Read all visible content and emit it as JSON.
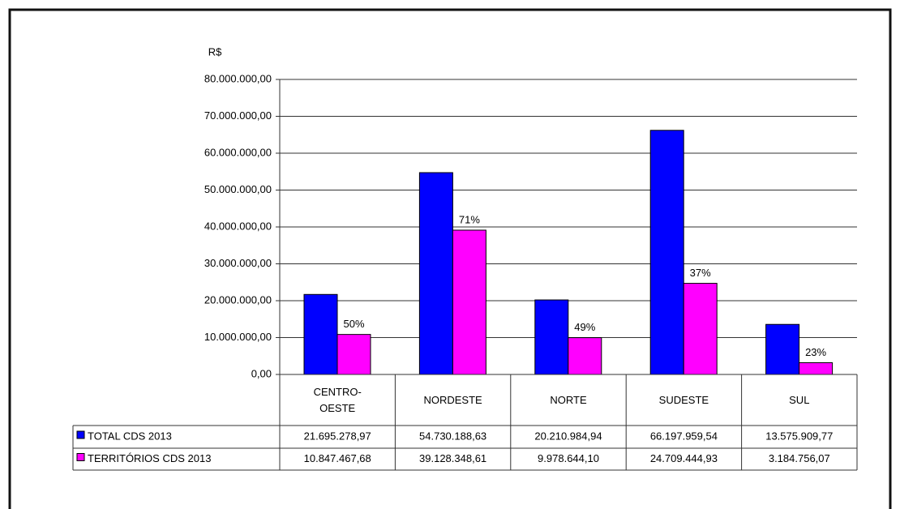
{
  "chart_data": {
    "type": "bar",
    "ylabel": "R$",
    "categories": [
      "CENTRO-OESTE",
      "NORDESTE",
      "NORTE",
      "SUDESTE",
      "SUL"
    ],
    "series": [
      {
        "name": "TOTAL CDS 2013",
        "color": "#0000ff",
        "values": [
          21695278.97,
          54730188.63,
          20210984.94,
          66197959.54,
          13575909.77
        ],
        "value_labels": [
          "21.695.278,97",
          "54.730.188,63",
          "20.210.984,94",
          "66.197.959,54",
          "13.575.909,77"
        ]
      },
      {
        "name": "TERRITÓRIOS CDS  2013",
        "color": "#ff00ff",
        "values": [
          10847467.68,
          39128348.61,
          9978644.1,
          24709444.93,
          3184756.07
        ],
        "value_labels": [
          "10.847.467,68",
          "39.128.348,61",
          "9.978.644,10",
          "24.709.444,93",
          "3.184.756,07"
        ],
        "share_labels": [
          "50%",
          "71%",
          "49%",
          "37%",
          "23%"
        ]
      }
    ],
    "ylim": [
      0,
      80000000
    ],
    "yticks": [
      {
        "value": 0,
        "label": "0,00"
      },
      {
        "value": 10000000,
        "label": "10.000.000,00"
      },
      {
        "value": 20000000,
        "label": "20.000.000,00"
      },
      {
        "value": 30000000,
        "label": "30.000.000,00"
      },
      {
        "value": 40000000,
        "label": "40.000.000,00"
      },
      {
        "value": 50000000,
        "label": "50.000.000,00"
      },
      {
        "value": 60000000,
        "label": "60.000.000,00"
      },
      {
        "value": 70000000,
        "label": "70.000.000,00"
      },
      {
        "value": 80000000,
        "label": "80.000.000,00"
      }
    ],
    "grid": true
  }
}
